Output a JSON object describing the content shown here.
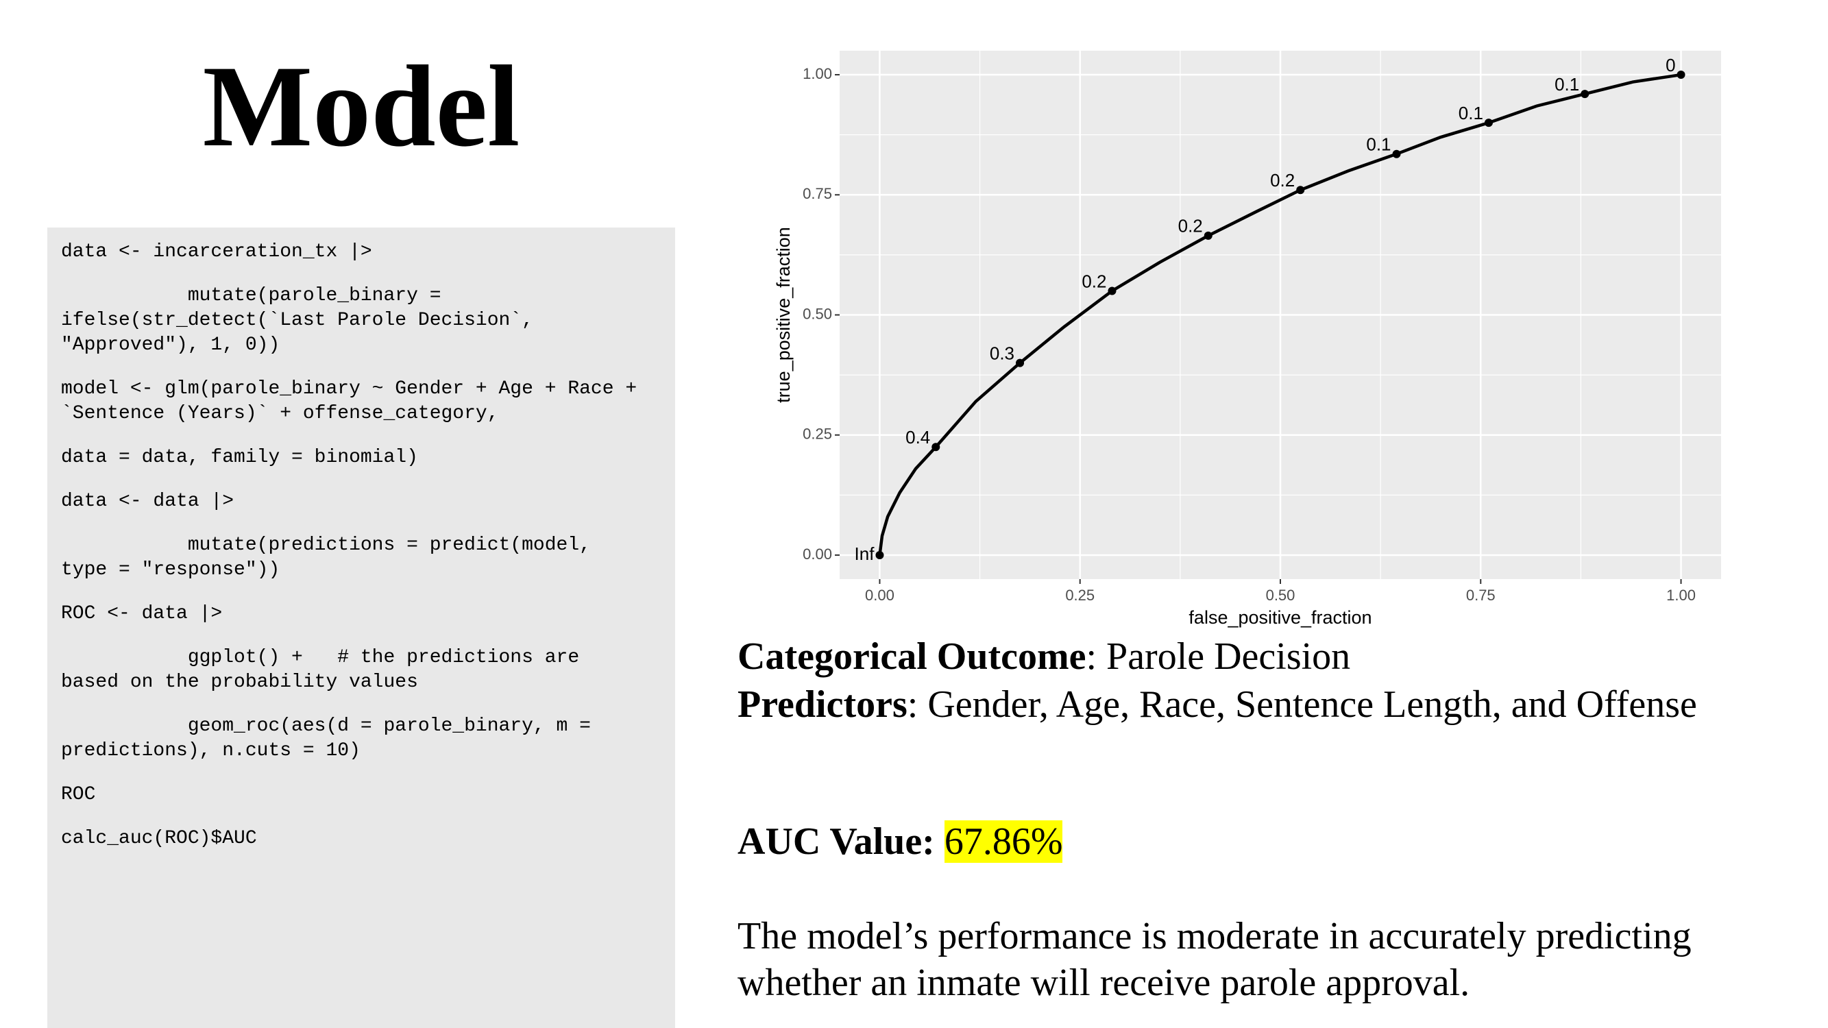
{
  "title": "Model",
  "code": [
    [
      "data <- incarceration_tx |>"
    ],
    [
      "           mutate(parole_binary =",
      "ifelse(str_detect(`Last Parole Decision`,",
      "\"Approved\"), 1, 0))"
    ],
    [
      "model <- glm(parole_binary ~ Gender + Age + Race +",
      "`Sentence (Years)` + offense_category,"
    ],
    [
      "data = data, family = binomial)"
    ],
    [
      "data <- data |>"
    ],
    [
      "           mutate(predictions = predict(model,",
      "type = \"response\"))"
    ],
    [
      "ROC <- data |>"
    ],
    [
      "           ggplot() +   # the predictions are",
      "based on the probability values"
    ],
    [
      "           geom_roc(aes(d = parole_binary, m =",
      "predictions), n.cuts = 10)"
    ],
    [
      "ROC"
    ],
    [
      "calc_auc(ROC)$AUC"
    ]
  ],
  "chart_data": {
    "type": "line",
    "x_label": "false_positive_fraction",
    "y_label": "true_positive_fraction",
    "x": [
      0,
      0.003,
      0.01,
      0.025,
      0.045,
      0.07,
      0.12,
      0.175,
      0.23,
      0.29,
      0.35,
      0.41,
      0.47,
      0.525,
      0.585,
      0.645,
      0.7,
      0.76,
      0.82,
      0.88,
      0.94,
      1.0
    ],
    "y": [
      0,
      0.04,
      0.08,
      0.13,
      0.18,
      0.225,
      0.32,
      0.4,
      0.475,
      0.55,
      0.61,
      0.665,
      0.715,
      0.76,
      0.8,
      0.835,
      0.87,
      0.9,
      0.935,
      0.96,
      0.985,
      1.0
    ],
    "points": {
      "x": [
        0,
        0.07,
        0.175,
        0.29,
        0.41,
        0.525,
        0.645,
        0.76,
        0.88,
        1.0
      ],
      "y": [
        0,
        0.225,
        0.4,
        0.55,
        0.665,
        0.76,
        0.835,
        0.9,
        0.96,
        1.0
      ],
      "labels": [
        "Inf",
        "0.4",
        "0.3",
        "0.2",
        "0.2",
        "0.2",
        "0.1",
        "0.1",
        "0.1",
        "0"
      ]
    },
    "color": "#000000",
    "xlim": [
      -0.05,
      1.05
    ],
    "ylim": [
      -0.05,
      1.05
    ],
    "xticks": [
      {
        "value": 0,
        "label": "0.00"
      },
      {
        "value": 0.25,
        "label": "0.25"
      },
      {
        "value": 0.5,
        "label": "0.50"
      },
      {
        "value": 0.75,
        "label": "0.75"
      },
      {
        "value": 1,
        "label": "1.00"
      }
    ],
    "yticks": [
      {
        "value": 0,
        "label": "0.00"
      },
      {
        "value": 0.25,
        "label": "0.25"
      },
      {
        "value": 0.5,
        "label": "0.50"
      },
      {
        "value": 0.75,
        "label": "0.75"
      },
      {
        "value": 1,
        "label": "1.00"
      }
    ],
    "grid": true
  },
  "text": {
    "outcome_label": "Categorical Outcome",
    "outcome_value": ": Parole Decision",
    "predictors_label": "Predictors",
    "predictors_value": ": Gender, Age, Race, Sentence Length, and Offense",
    "auc_label": "AUC Value:",
    "auc_value": "67.86%",
    "conclusion": [
      "The model’s performance is moderate in accurately predicting",
      "whether an inmate will receive parole approval."
    ]
  }
}
